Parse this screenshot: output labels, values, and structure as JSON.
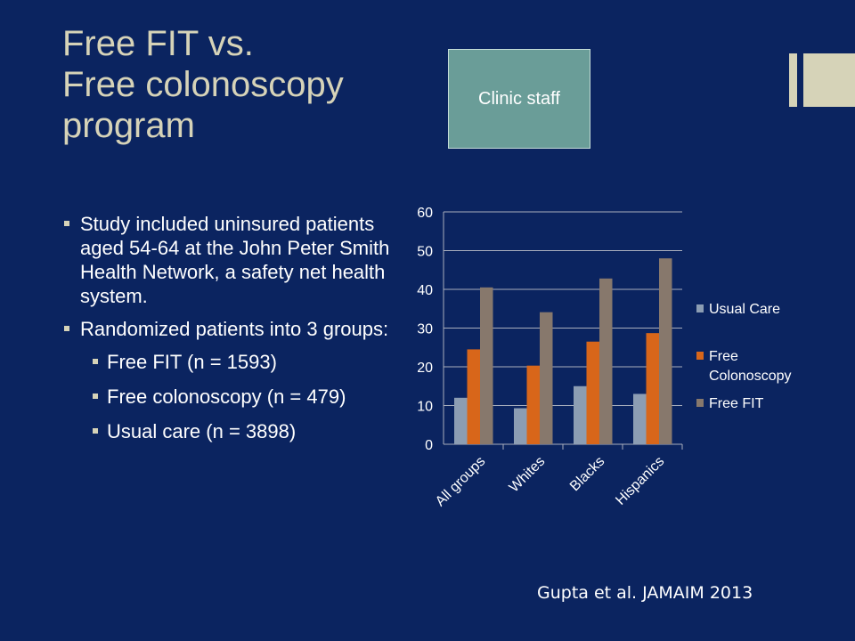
{
  "slide": {
    "title_lines": [
      "Free FIT vs.",
      "Free colonoscopy",
      "program"
    ],
    "clinic_box": "Clinic staff",
    "bullets": [
      "Study included uninsured patients aged 54-64 at the John Peter Smith Health Network, a safety net health system.",
      "Randomized patients into 3 groups:"
    ],
    "sub_bullets": [
      "Free FIT (n = 1593)",
      "Free colonoscopy (n = 479)",
      "Usual care (n = 3898)"
    ],
    "citation": "Gupta et al. JAMAIM 2013",
    "colors": {
      "background": "#0b2460",
      "title": "#d6d3b8",
      "clinic_box": "#6a9d98"
    }
  },
  "chart_data": {
    "type": "bar",
    "categories": [
      "All groups",
      "Whites",
      "Blacks",
      "Hispanics"
    ],
    "series": [
      {
        "name": "Usual Care",
        "values": [
          12,
          9.3,
          15,
          13
        ],
        "color": "#8c9db3"
      },
      {
        "name": "Free Colonoscopy",
        "values": [
          24.5,
          20.3,
          26.5,
          28.7
        ],
        "color": "#d8661a"
      },
      {
        "name": "Free FIT",
        "values": [
          40.5,
          34.1,
          42.8,
          48
        ],
        "color": "#87786c"
      }
    ],
    "ylim": [
      0,
      60
    ],
    "yticks": [
      0,
      10,
      20,
      30,
      40,
      50,
      60
    ],
    "grid": true,
    "legend_position": "right",
    "legend_labels": [
      [
        "Usual Care"
      ],
      [
        "Free",
        "Colonoscopy"
      ],
      [
        "Free FIT"
      ]
    ]
  }
}
